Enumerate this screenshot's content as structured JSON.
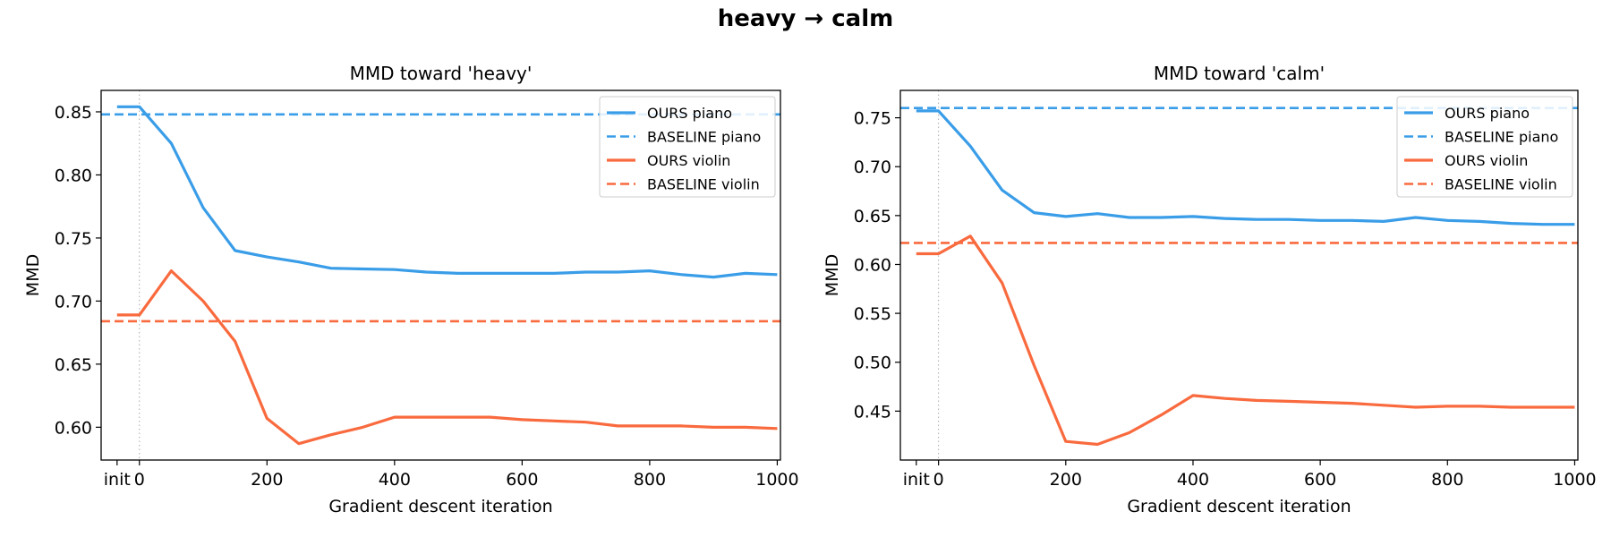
{
  "figure_title": "heavy → calm",
  "colors": {
    "piano": "#3a9de8",
    "violin": "#f96a3e",
    "init_line": "#aaaaaa"
  },
  "chart_data": [
    {
      "type": "line",
      "title": "MMD toward  'heavy'",
      "xlabel": "Gradient descent iteration",
      "ylabel": "MMD",
      "x_ticks": [
        "init",
        "0",
        "200",
        "400",
        "600",
        "800",
        "1000"
      ],
      "y_ticks": [
        "0.60",
        "0.65",
        "0.70",
        "0.75",
        "0.80",
        "0.85"
      ],
      "xlim": [
        -60,
        1005
      ],
      "ylim": [
        0.574,
        0.867
      ],
      "legend_position": "top-right",
      "x": [
        "init",
        0,
        50,
        100,
        150,
        200,
        250,
        300,
        350,
        400,
        450,
        500,
        550,
        600,
        650,
        700,
        750,
        800,
        850,
        900,
        950,
        1000
      ],
      "series": [
        {
          "name": "OURS piano",
          "style": "solid",
          "color": "#3a9de8",
          "values": [
            0.854,
            0.854,
            0.825,
            0.774,
            0.74,
            0.735,
            0.731,
            0.726,
            0.7255,
            0.725,
            0.723,
            0.722,
            0.722,
            0.722,
            0.722,
            0.723,
            0.723,
            0.724,
            0.721,
            0.719,
            0.722,
            0.721
          ]
        },
        {
          "name": "BASELINE piano",
          "style": "dashed",
          "color": "#3a9de8",
          "constant": 0.848
        },
        {
          "name": "OURS violin",
          "style": "solid",
          "color": "#f96a3e",
          "values": [
            0.689,
            0.689,
            0.724,
            0.7,
            0.668,
            0.607,
            0.587,
            0.594,
            0.6,
            0.608,
            0.608,
            0.608,
            0.608,
            0.606,
            0.605,
            0.604,
            0.601,
            0.601,
            0.601,
            0.6,
            0.6,
            0.599
          ]
        },
        {
          "name": "BASELINE violin",
          "style": "dashed",
          "color": "#f96a3e",
          "constant": 0.684
        }
      ]
    },
    {
      "type": "line",
      "title": "MMD toward  'calm'",
      "xlabel": "Gradient descent iteration",
      "ylabel": "MMD",
      "x_ticks": [
        "init",
        "0",
        "200",
        "400",
        "600",
        "800",
        "1000"
      ],
      "y_ticks": [
        "0.45",
        "0.50",
        "0.55",
        "0.60",
        "0.65",
        "0.70",
        "0.75"
      ],
      "xlim": [
        -60,
        1005
      ],
      "ylim": [
        0.4,
        0.778
      ],
      "legend_position": "top-right",
      "x": [
        "init",
        0,
        50,
        100,
        150,
        200,
        250,
        300,
        350,
        400,
        450,
        500,
        550,
        600,
        650,
        700,
        750,
        800,
        850,
        900,
        950,
        1000
      ],
      "series": [
        {
          "name": "OURS piano",
          "style": "solid",
          "color": "#3a9de8",
          "values": [
            0.757,
            0.757,
            0.721,
            0.676,
            0.653,
            0.649,
            0.652,
            0.648,
            0.648,
            0.649,
            0.647,
            0.646,
            0.646,
            0.645,
            0.645,
            0.644,
            0.648,
            0.645,
            0.644,
            0.642,
            0.641,
            0.641
          ]
        },
        {
          "name": "BASELINE piano",
          "style": "dashed",
          "color": "#3a9de8",
          "constant": 0.76
        },
        {
          "name": "OURS violin",
          "style": "solid",
          "color": "#f96a3e",
          "values": [
            0.611,
            0.611,
            0.629,
            0.581,
            0.497,
            0.419,
            0.416,
            0.428,
            0.446,
            0.466,
            0.463,
            0.461,
            0.46,
            0.459,
            0.458,
            0.456,
            0.454,
            0.455,
            0.455,
            0.454,
            0.454,
            0.454
          ]
        },
        {
          "name": "BASELINE violin",
          "style": "dashed",
          "color": "#f96a3e",
          "constant": 0.622
        }
      ]
    }
  ]
}
